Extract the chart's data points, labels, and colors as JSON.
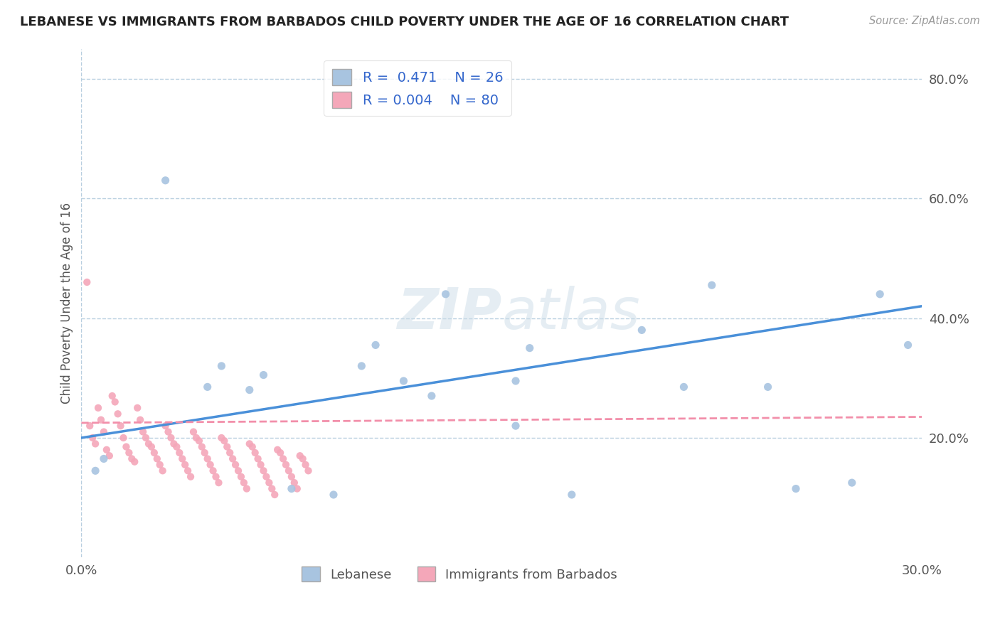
{
  "title": "LEBANESE VS IMMIGRANTS FROM BARBADOS CHILD POVERTY UNDER THE AGE OF 16 CORRELATION CHART",
  "source": "Source: ZipAtlas.com",
  "xlabel": "",
  "ylabel": "Child Poverty Under the Age of 16",
  "xlim": [
    0.0,
    0.3
  ],
  "ylim": [
    0.0,
    0.85
  ],
  "xticks": [
    0.0,
    0.05,
    0.1,
    0.15,
    0.2,
    0.25,
    0.3
  ],
  "xtick_labels": [
    "0.0%",
    "",
    "",
    "",
    "",
    "",
    "30.0%"
  ],
  "ytick_labels_right": [
    "20.0%",
    "40.0%",
    "60.0%",
    "80.0%"
  ],
  "ytick_vals_right": [
    0.2,
    0.4,
    0.6,
    0.8
  ],
  "R_lebanese": 0.471,
  "N_lebanese": 26,
  "R_barbados": 0.004,
  "N_barbados": 80,
  "color_lebanese": "#a8c4e0",
  "color_barbados": "#f4a7b9",
  "color_line_lebanese": "#4a90d9",
  "color_line_barbados": "#f28faa",
  "legend_label_lebanese": "Lebanese",
  "legend_label_barbados": "Immigrants from Barbados",
  "watermark_part1": "ZIP",
  "watermark_part2": "atlas",
  "background_color": "#ffffff",
  "grid_color": "#b8cfe0",
  "lebanese_x": [
    0.005,
    0.008,
    0.03,
    0.045,
    0.05,
    0.06,
    0.065,
    0.075,
    0.09,
    0.1,
    0.105,
    0.115,
    0.125,
    0.13,
    0.155,
    0.155,
    0.16,
    0.175,
    0.2,
    0.215,
    0.225,
    0.245,
    0.255,
    0.275,
    0.285,
    0.295
  ],
  "lebanese_y": [
    0.145,
    0.165,
    0.63,
    0.285,
    0.32,
    0.28,
    0.305,
    0.115,
    0.105,
    0.32,
    0.355,
    0.295,
    0.27,
    0.44,
    0.22,
    0.295,
    0.35,
    0.105,
    0.38,
    0.285,
    0.455,
    0.285,
    0.115,
    0.125,
    0.44,
    0.355
  ],
  "barbados_x": [
    0.002,
    0.003,
    0.004,
    0.005,
    0.006,
    0.007,
    0.008,
    0.009,
    0.01,
    0.011,
    0.012,
    0.013,
    0.014,
    0.015,
    0.016,
    0.017,
    0.018,
    0.019,
    0.02,
    0.021,
    0.022,
    0.023,
    0.024,
    0.025,
    0.026,
    0.027,
    0.028,
    0.029,
    0.03,
    0.031,
    0.032,
    0.033,
    0.034,
    0.035,
    0.036,
    0.037,
    0.038,
    0.039,
    0.04,
    0.041,
    0.042,
    0.043,
    0.044,
    0.045,
    0.046,
    0.047,
    0.048,
    0.049,
    0.05,
    0.051,
    0.052,
    0.053,
    0.054,
    0.055,
    0.056,
    0.057,
    0.058,
    0.059,
    0.06,
    0.061,
    0.062,
    0.063,
    0.064,
    0.065,
    0.066,
    0.067,
    0.068,
    0.069,
    0.07,
    0.071,
    0.072,
    0.073,
    0.074,
    0.075,
    0.076,
    0.077,
    0.078,
    0.079,
    0.08,
    0.081
  ],
  "barbados_y": [
    0.46,
    0.22,
    0.2,
    0.19,
    0.25,
    0.23,
    0.21,
    0.18,
    0.17,
    0.27,
    0.26,
    0.24,
    0.22,
    0.2,
    0.185,
    0.175,
    0.165,
    0.16,
    0.25,
    0.23,
    0.21,
    0.2,
    0.19,
    0.185,
    0.175,
    0.165,
    0.155,
    0.145,
    0.22,
    0.21,
    0.2,
    0.19,
    0.185,
    0.175,
    0.165,
    0.155,
    0.145,
    0.135,
    0.21,
    0.2,
    0.195,
    0.185,
    0.175,
    0.165,
    0.155,
    0.145,
    0.135,
    0.125,
    0.2,
    0.195,
    0.185,
    0.175,
    0.165,
    0.155,
    0.145,
    0.135,
    0.125,
    0.115,
    0.19,
    0.185,
    0.175,
    0.165,
    0.155,
    0.145,
    0.135,
    0.125,
    0.115,
    0.105,
    0.18,
    0.175,
    0.165,
    0.155,
    0.145,
    0.135,
    0.125,
    0.115,
    0.17,
    0.165,
    0.155,
    0.145
  ],
  "leb_trend_x0": 0.0,
  "leb_trend_y0": 0.2,
  "leb_trend_x1": 0.3,
  "leb_trend_y1": 0.42,
  "bar_trend_x0": 0.0,
  "bar_trend_y0": 0.225,
  "bar_trend_x1": 0.3,
  "bar_trend_y1": 0.235
}
